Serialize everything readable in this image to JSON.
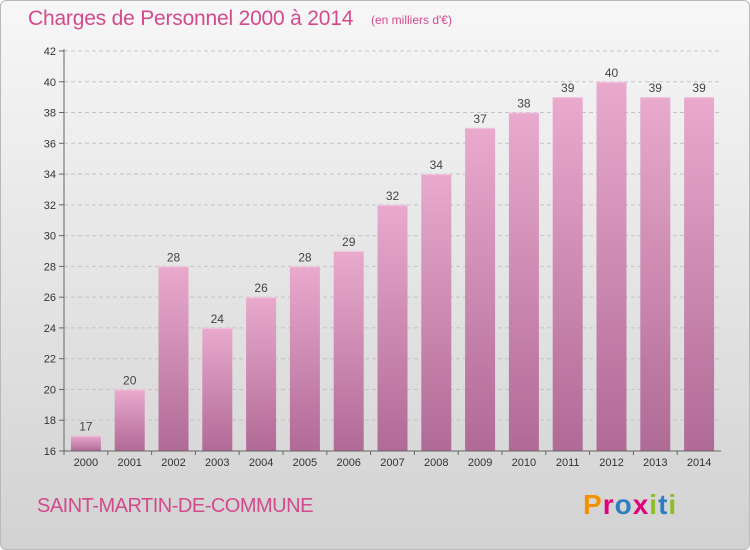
{
  "header": {
    "title": "Charges de Personnel 2000 à 2014",
    "unit": "(en milliers d'€)"
  },
  "footer": {
    "commune": "SAINT-MARTIN-DE-COMMUNE",
    "logo": "Proxiti"
  },
  "colors": {
    "title": "#d34a8c",
    "bar_top": "#e9aacd",
    "bar_bottom": "#b06a96",
    "logo": [
      "#f39200",
      "#e2007a",
      "#2e7fc1",
      "#e2007a",
      "#8cbf26",
      "#2e7fc1",
      "#8cbf26"
    ]
  },
  "chart_data": {
    "type": "bar",
    "title": "Charges de Personnel 2000 à 2014",
    "xlabel": "",
    "ylabel": "",
    "categories": [
      "2000",
      "2001",
      "2002",
      "2003",
      "2004",
      "2005",
      "2006",
      "2007",
      "2008",
      "2009",
      "2010",
      "2011",
      "2012",
      "2013",
      "2014"
    ],
    "values": [
      17,
      20,
      28,
      24,
      26,
      28,
      29,
      32,
      34,
      37,
      38,
      39,
      40,
      39,
      39
    ],
    "ylim": [
      16,
      42
    ],
    "yticks": [
      16,
      18,
      20,
      22,
      24,
      26,
      28,
      30,
      32,
      34,
      36,
      38,
      40,
      42
    ],
    "grid": true,
    "legend": "none"
  }
}
